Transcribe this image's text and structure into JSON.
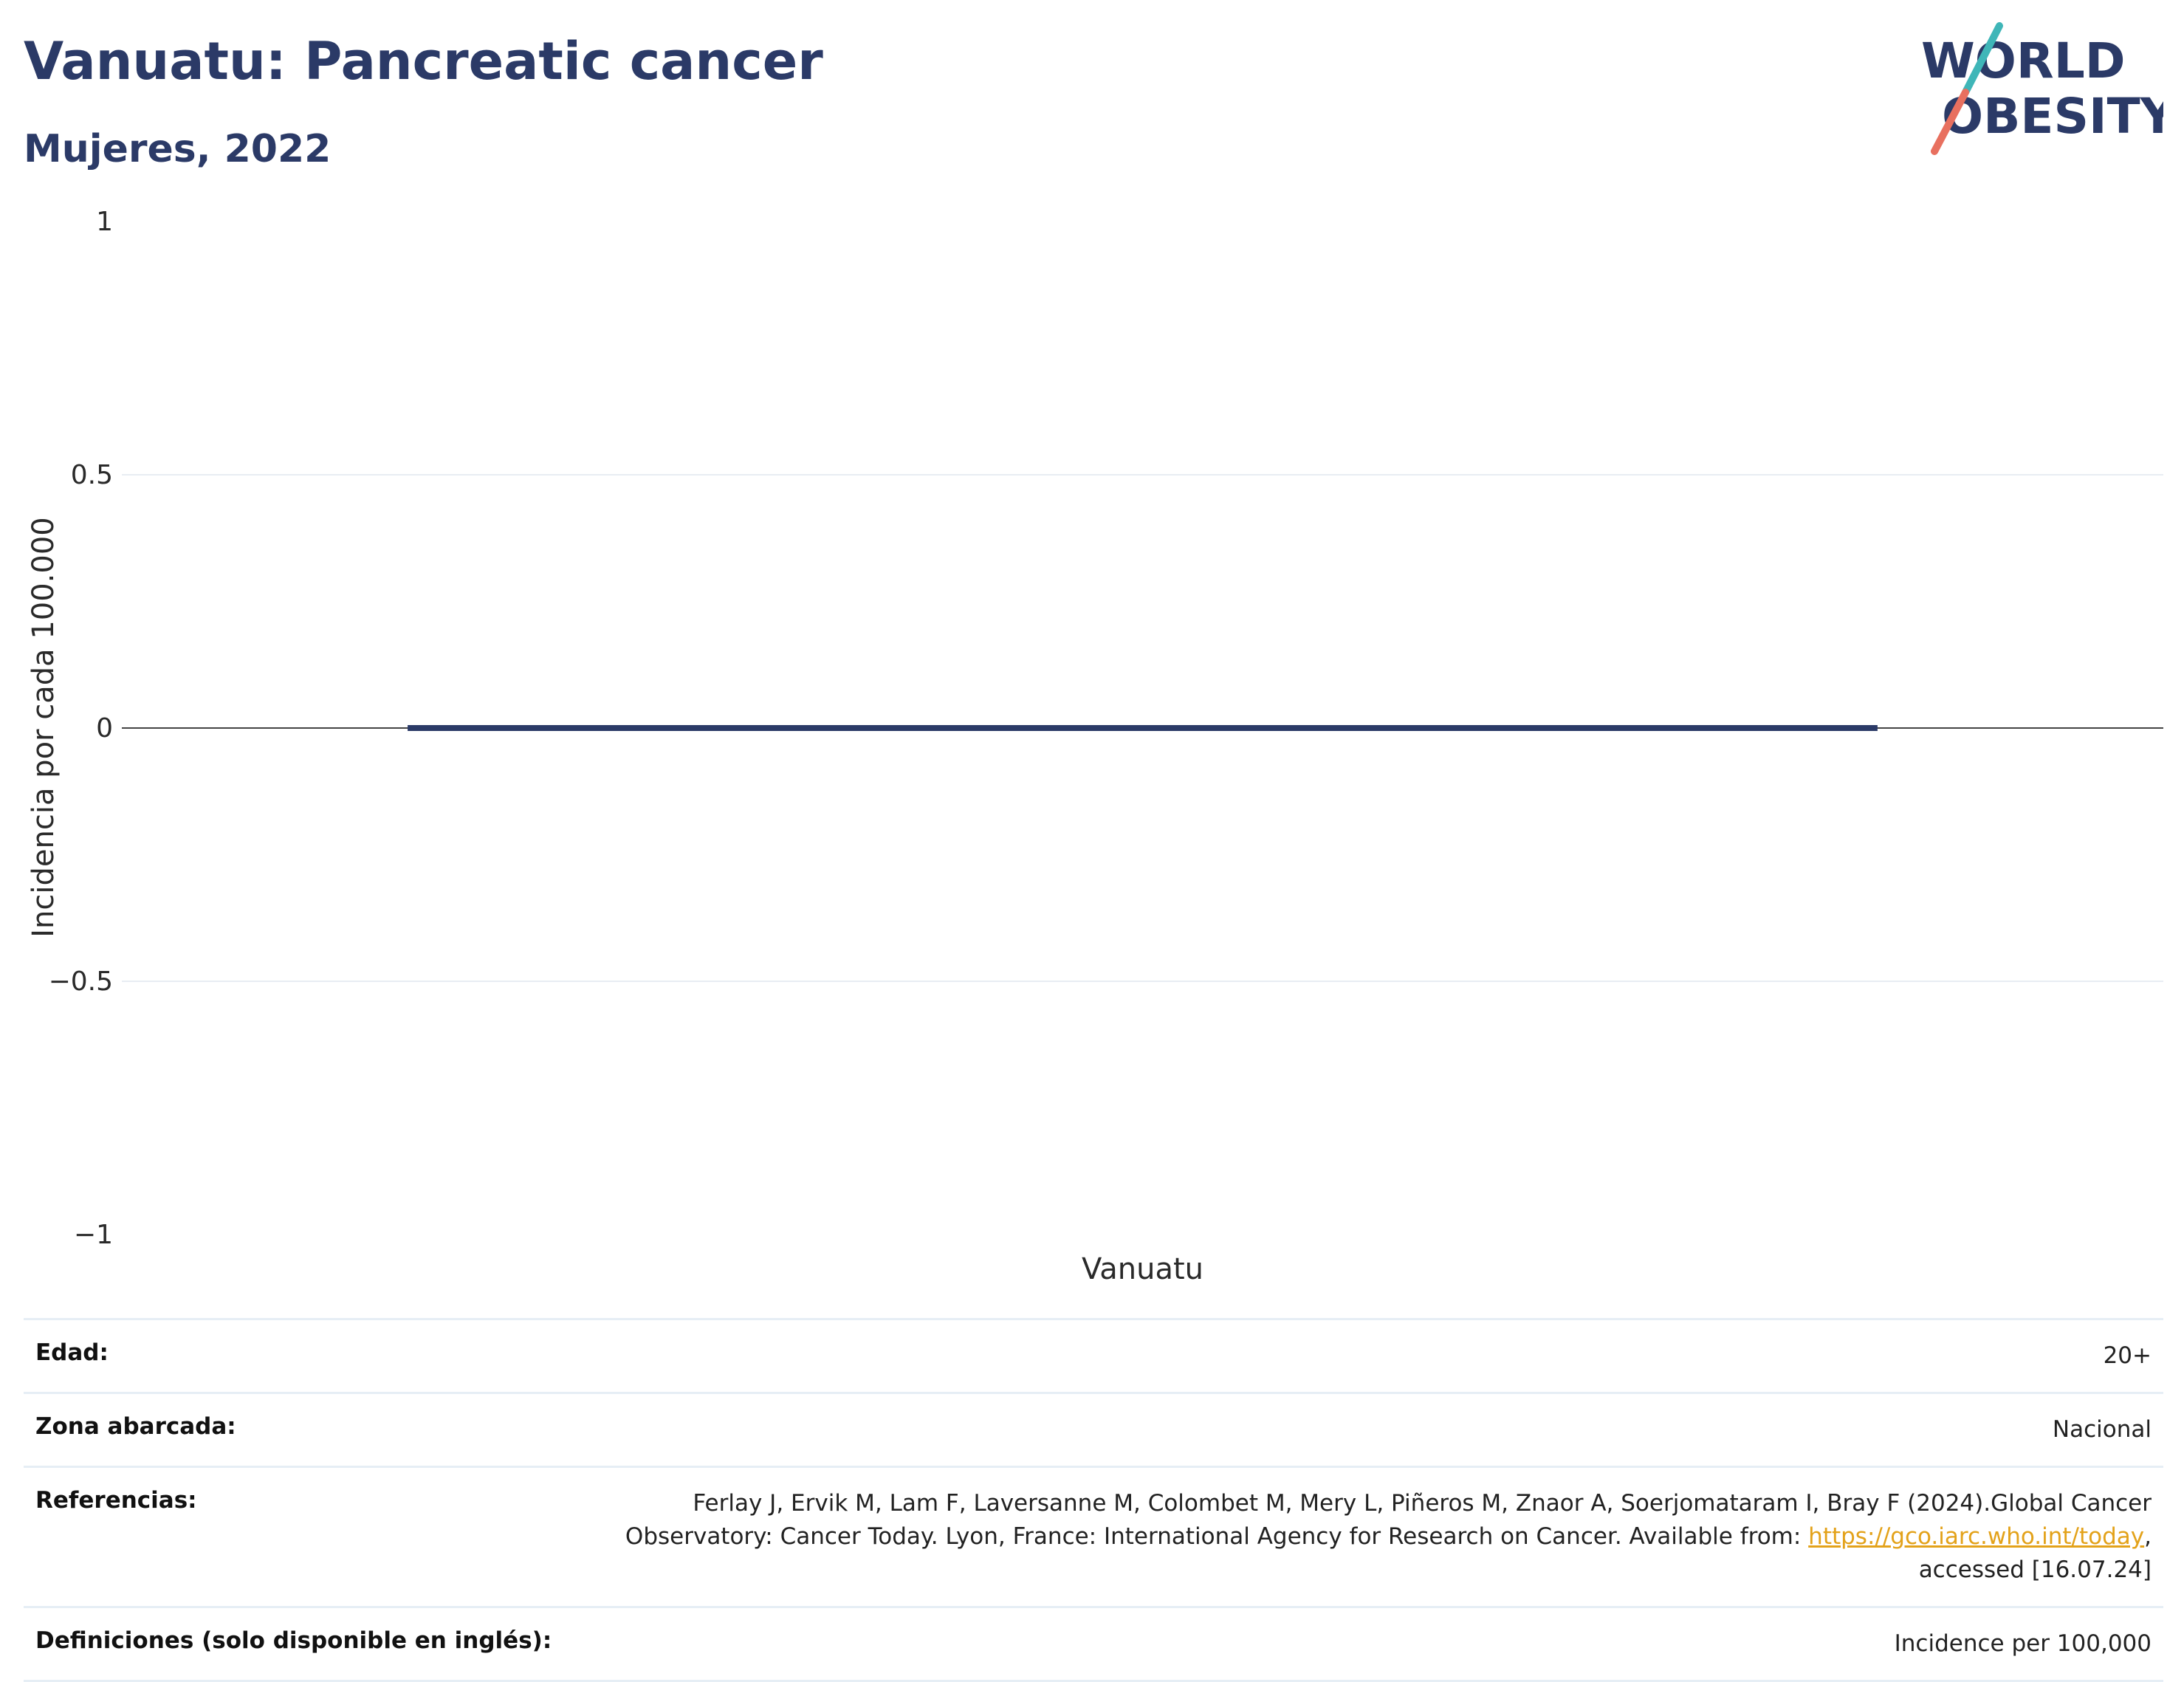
{
  "header": {
    "title": "Vanuatu: Pancreatic cancer",
    "subtitle": "Mujeres, 2022"
  },
  "logo": {
    "line1": "WORLD",
    "line2": "OBESITY",
    "colors": {
      "text": "#2b3a67",
      "slash_teal": "#3fb6b8",
      "slash_coral": "#e8705f"
    }
  },
  "chart_data": {
    "type": "bar",
    "categories": [
      "Vanuatu"
    ],
    "series": [
      {
        "values": [
          0
        ]
      }
    ],
    "title": "Vanuatu: Pancreatic cancer",
    "subtitle": "Mujeres, 2022",
    "xlabel": "",
    "ylabel": "Incidencia por cada 100.000",
    "ylim": [
      -1,
      1
    ],
    "yticks": [
      1,
      0.5,
      0,
      -0.5,
      -1
    ],
    "ytick_labels": [
      "1",
      "0.5",
      "0",
      "−0.5",
      "−1"
    ],
    "grid": true,
    "legend": false,
    "colors": {
      "bar": "#2b3a67",
      "grid": "#e8edf3",
      "zero_line": "#444444"
    }
  },
  "info": {
    "rows": [
      {
        "label": "Edad:",
        "value": "20+"
      },
      {
        "label": "Zona abarcada:",
        "value": "Nacional"
      },
      {
        "label": "Referencias:",
        "value_before": "Ferlay J, Ervik M, Lam F, Laversanne M, Colombet M, Mery L, Piñeros M, Znaor A, Soerjomataram I, Bray F (2024).Global Cancer Observatory: Cancer Today. Lyon, France: International Agency for Research on Cancer. Available from: ",
        "link": "https://gco.iarc.who.int/today",
        "value_after": ", accessed [16.07.24]"
      },
      {
        "label": "Definiciones (solo disponible en inglés):",
        "value": "Incidence per 100,000"
      }
    ]
  }
}
